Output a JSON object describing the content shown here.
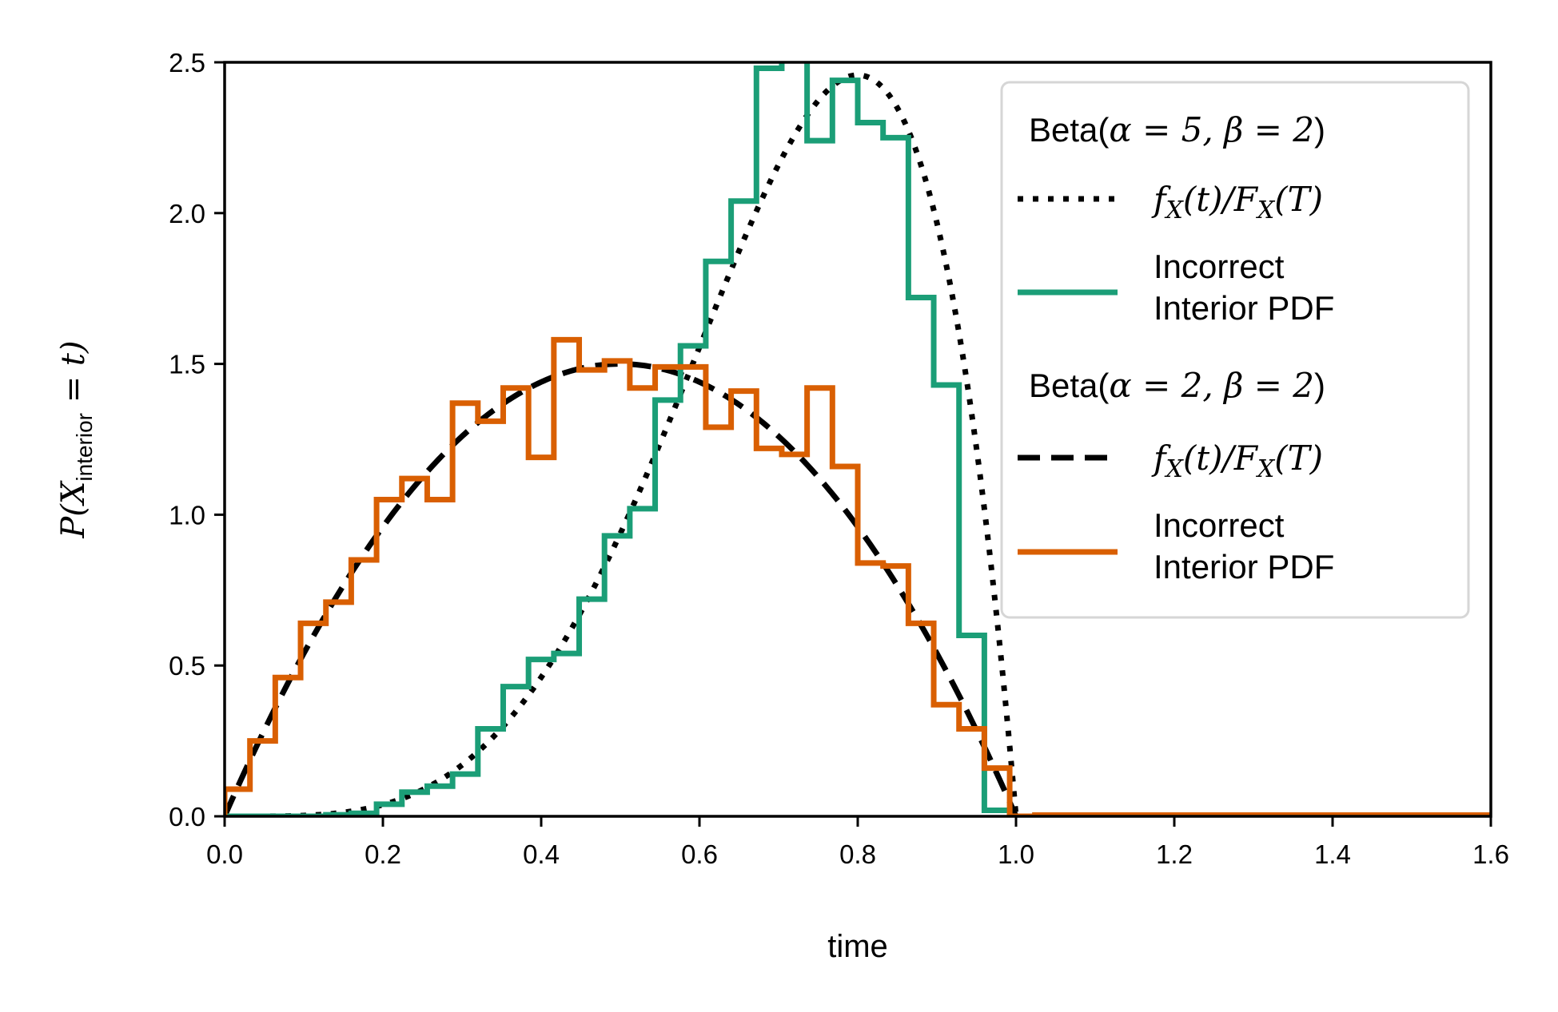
{
  "chart_data": {
    "type": "line",
    "title": "",
    "xlabel": "time",
    "ylabel": "P(X_interior = t)",
    "ylabel_parts": {
      "prefix": "P(X",
      "subscript": "interior",
      "suffix": " = t)"
    },
    "xlim": [
      0.0,
      1.6
    ],
    "ylim": [
      0.0,
      2.5
    ],
    "xticks": [
      "0.0",
      "0.2",
      "0.4",
      "0.6",
      "0.8",
      "1.0",
      "1.2",
      "1.4",
      "1.6"
    ],
    "yticks": [
      "0.0",
      "0.5",
      "1.0",
      "1.5",
      "2.0",
      "2.5"
    ],
    "grid": false,
    "legend_position": "top-right",
    "bin_width": 0.032,
    "series": [
      {
        "group": "Beta(α = 5, β = 2)",
        "name": "f_X(t)/F_X(T)",
        "kind": "beta-pdf",
        "alpha": 5,
        "beta": 2,
        "style": "dotted",
        "color": "#000000"
      },
      {
        "group": "Beta(α = 5, β = 2)",
        "name": "Incorrect Interior PDF",
        "kind": "histogram",
        "style": "step",
        "color": "#1b9e77",
        "values": [
          0.0,
          0.0,
          0.0,
          0.0,
          0.005,
          0.01,
          0.04,
          0.08,
          0.1,
          0.14,
          0.29,
          0.43,
          0.52,
          0.54,
          0.72,
          0.93,
          1.02,
          1.38,
          1.56,
          1.84,
          2.04,
          2.48,
          2.62,
          2.24,
          2.44,
          2.3,
          2.25,
          1.72,
          1.43,
          0.6,
          0.02,
          0.0
        ]
      },
      {
        "group": "Beta(α = 2, β = 2)",
        "name": "f_X(t)/F_X(T)",
        "kind": "beta-pdf",
        "alpha": 2,
        "beta": 2,
        "style": "dashed",
        "color": "#000000"
      },
      {
        "group": "Beta(α = 2, β = 2)",
        "name": "Incorrect Interior PDF",
        "kind": "histogram",
        "style": "step",
        "color": "#d95f02",
        "values": [
          0.09,
          0.25,
          0.46,
          0.64,
          0.71,
          0.85,
          1.05,
          1.12,
          1.05,
          1.37,
          1.31,
          1.42,
          1.19,
          1.58,
          1.48,
          1.51,
          1.42,
          1.49,
          1.49,
          1.29,
          1.41,
          1.22,
          1.2,
          1.42,
          1.16,
          0.84,
          0.83,
          0.64,
          0.37,
          0.29,
          0.16,
          0.0
        ]
      }
    ],
    "tail": {
      "x_start": 1.024,
      "x_end": 1.6,
      "value": 0.004
    }
  },
  "legend": {
    "group1_title_parts": {
      "prefix": "Beta(",
      "math": "α = 5, β = 2",
      "suffix": ")"
    },
    "group2_title_parts": {
      "prefix": "Beta(",
      "math": "α = 2, β = 2",
      "suffix": ")"
    },
    "pdf_label_parts": {
      "f": "f",
      "fsub": "X",
      "mid": "(t)/",
      "F": "F",
      "Fsub": "X",
      "end": "(T)"
    },
    "hist_label_line1": "Incorrect",
    "hist_label_line2": "Interior PDF"
  }
}
